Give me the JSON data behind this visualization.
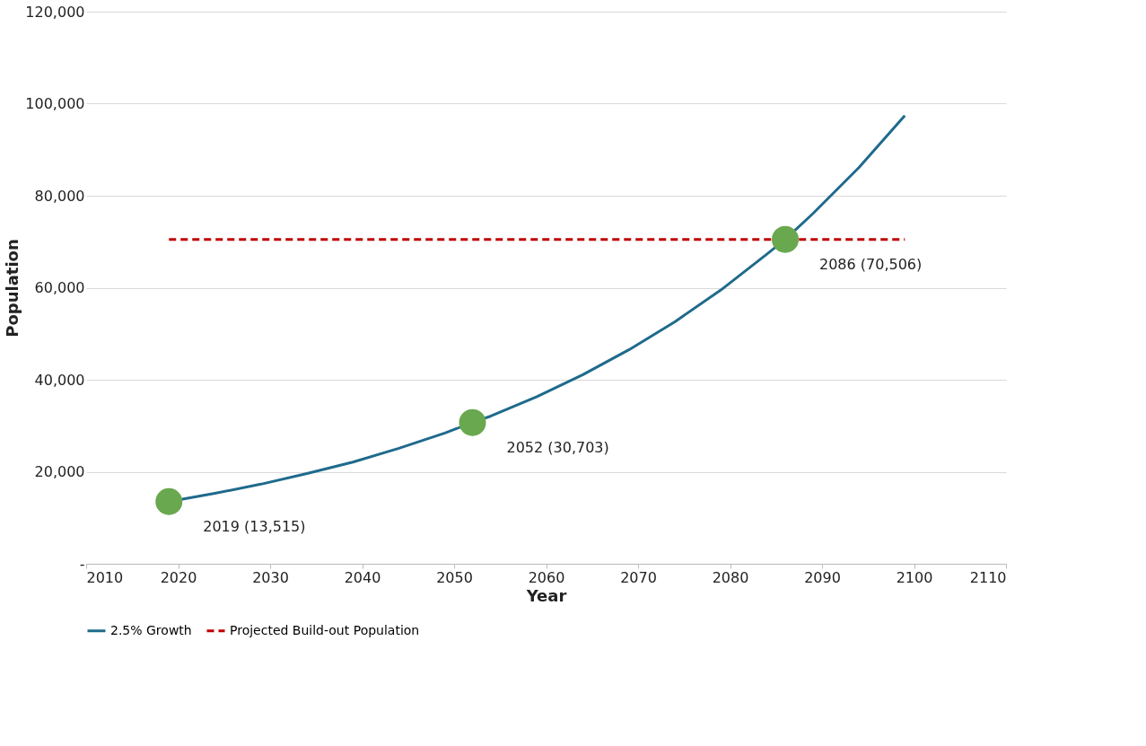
{
  "chart_data": {
    "type": "line",
    "xlabel": "Year",
    "ylabel": "Population",
    "xlim": [
      2010,
      2110
    ],
    "xticks": [
      2010,
      2020,
      2030,
      2040,
      2050,
      2060,
      2070,
      2080,
      2090,
      2100,
      2110
    ],
    "ylim": [
      0,
      120000
    ],
    "yticks": [
      {
        "value": 0,
        "label": "-"
      },
      {
        "value": 20000,
        "label": "20,000"
      },
      {
        "value": 40000,
        "label": "40,000"
      },
      {
        "value": 60000,
        "label": "60,000"
      },
      {
        "value": 80000,
        "label": "80,000"
      },
      {
        "value": 100000,
        "label": "100,000"
      },
      {
        "value": 120000,
        "label": "120,000"
      }
    ],
    "grid": "y",
    "legend": "bottom",
    "series": [
      {
        "name": "2.5% Growth",
        "color": "#1f6a8c",
        "line_style": "solid",
        "x": [
          2019,
          2024,
          2029,
          2034,
          2039,
          2044,
          2049,
          2052,
          2054,
          2059,
          2064,
          2069,
          2074,
          2079,
          2084,
          2086,
          2089,
          2094,
          2099
        ],
        "values": [
          13515,
          15300,
          17300,
          19600,
          22100,
          25100,
          28400,
          30703,
          32100,
          36300,
          41100,
          46500,
          52600,
          59500,
          67300,
          70506,
          76100,
          86100,
          97400
        ]
      },
      {
        "name": "Projected Build-out Population",
        "color": "#c00000",
        "line_style": "dashed",
        "x": [
          2019,
          2099
        ],
        "values": [
          70506,
          70506
        ]
      },
      {
        "type": "scatter",
        "color": "#6aa84f",
        "marker": "circle",
        "x": [
          2019,
          2052,
          2086
        ],
        "values": [
          13515,
          30703,
          70506
        ]
      }
    ],
    "annotations": [
      {
        "text": "2019 (13,515)",
        "x": 2019,
        "y": 13515
      },
      {
        "text": "2052 (30,703)",
        "x": 2052,
        "y": 30703
      },
      {
        "text": "2086 (70,506)",
        "x": 2086,
        "y": 70506
      }
    ]
  }
}
